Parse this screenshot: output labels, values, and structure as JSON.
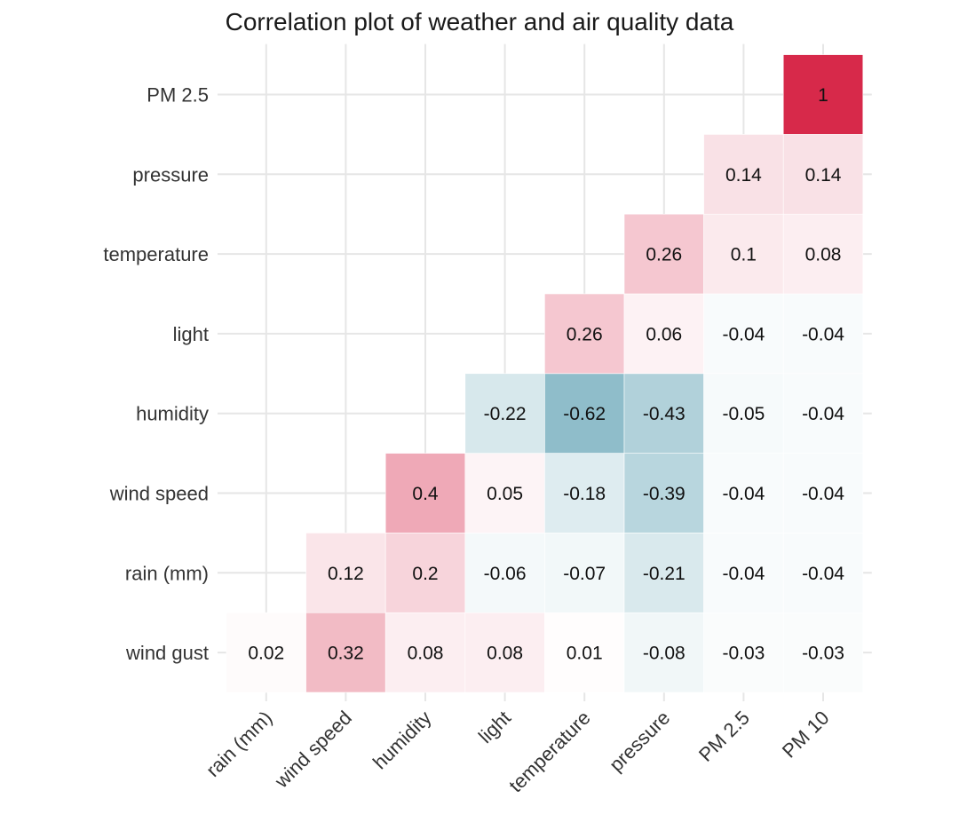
{
  "chart_data": {
    "type": "heatmap",
    "title": "Correlation plot of weather and air quality data",
    "x_categories": [
      "rain (mm)",
      "wind speed",
      "humidity",
      "light",
      "temperature",
      "pressure",
      "PM 2.5",
      "PM 10"
    ],
    "y_categories": [
      "wind gust",
      "rain (mm)",
      "wind speed",
      "humidity",
      "light",
      "temperature",
      "pressure",
      "PM 2.5"
    ],
    "color_scale": {
      "negative": "#4a95aa",
      "zero": "#ffffff",
      "positive": "#d7294a",
      "range": [
        -1,
        1
      ]
    },
    "grid": true,
    "cells": [
      {
        "x": "rain (mm)",
        "y": "wind gust",
        "value": 0.02
      },
      {
        "x": "wind speed",
        "y": "wind gust",
        "value": 0.32
      },
      {
        "x": "humidity",
        "y": "wind gust",
        "value": 0.08
      },
      {
        "x": "light",
        "y": "wind gust",
        "value": 0.08
      },
      {
        "x": "temperature",
        "y": "wind gust",
        "value": 0.01
      },
      {
        "x": "pressure",
        "y": "wind gust",
        "value": -0.08
      },
      {
        "x": "PM 2.5",
        "y": "wind gust",
        "value": -0.03
      },
      {
        "x": "PM 10",
        "y": "wind gust",
        "value": -0.03
      },
      {
        "x": "wind speed",
        "y": "rain (mm)",
        "value": 0.12
      },
      {
        "x": "humidity",
        "y": "rain (mm)",
        "value": 0.2
      },
      {
        "x": "light",
        "y": "rain (mm)",
        "value": -0.06
      },
      {
        "x": "temperature",
        "y": "rain (mm)",
        "value": -0.07
      },
      {
        "x": "pressure",
        "y": "rain (mm)",
        "value": -0.21
      },
      {
        "x": "PM 2.5",
        "y": "rain (mm)",
        "value": -0.04
      },
      {
        "x": "PM 10",
        "y": "rain (mm)",
        "value": -0.04
      },
      {
        "x": "humidity",
        "y": "wind speed",
        "value": 0.4
      },
      {
        "x": "light",
        "y": "wind speed",
        "value": 0.05
      },
      {
        "x": "temperature",
        "y": "wind speed",
        "value": -0.18
      },
      {
        "x": "pressure",
        "y": "wind speed",
        "value": -0.39
      },
      {
        "x": "PM 2.5",
        "y": "wind speed",
        "value": -0.04
      },
      {
        "x": "PM 10",
        "y": "wind speed",
        "value": -0.04
      },
      {
        "x": "light",
        "y": "humidity",
        "value": -0.22
      },
      {
        "x": "temperature",
        "y": "humidity",
        "value": -0.62
      },
      {
        "x": "pressure",
        "y": "humidity",
        "value": -0.43
      },
      {
        "x": "PM 2.5",
        "y": "humidity",
        "value": -0.05
      },
      {
        "x": "PM 10",
        "y": "humidity",
        "value": -0.04
      },
      {
        "x": "temperature",
        "y": "light",
        "value": 0.26
      },
      {
        "x": "pressure",
        "y": "light",
        "value": 0.06
      },
      {
        "x": "PM 2.5",
        "y": "light",
        "value": -0.04
      },
      {
        "x": "PM 10",
        "y": "light",
        "value": -0.04
      },
      {
        "x": "pressure",
        "y": "temperature",
        "value": 0.26
      },
      {
        "x": "PM 2.5",
        "y": "temperature",
        "value": 0.1
      },
      {
        "x": "PM 10",
        "y": "temperature",
        "value": 0.08
      },
      {
        "x": "PM 2.5",
        "y": "pressure",
        "value": 0.14
      },
      {
        "x": "PM 10",
        "y": "pressure",
        "value": 0.14
      },
      {
        "x": "PM 10",
        "y": "PM 2.5",
        "value": 1
      }
    ]
  }
}
